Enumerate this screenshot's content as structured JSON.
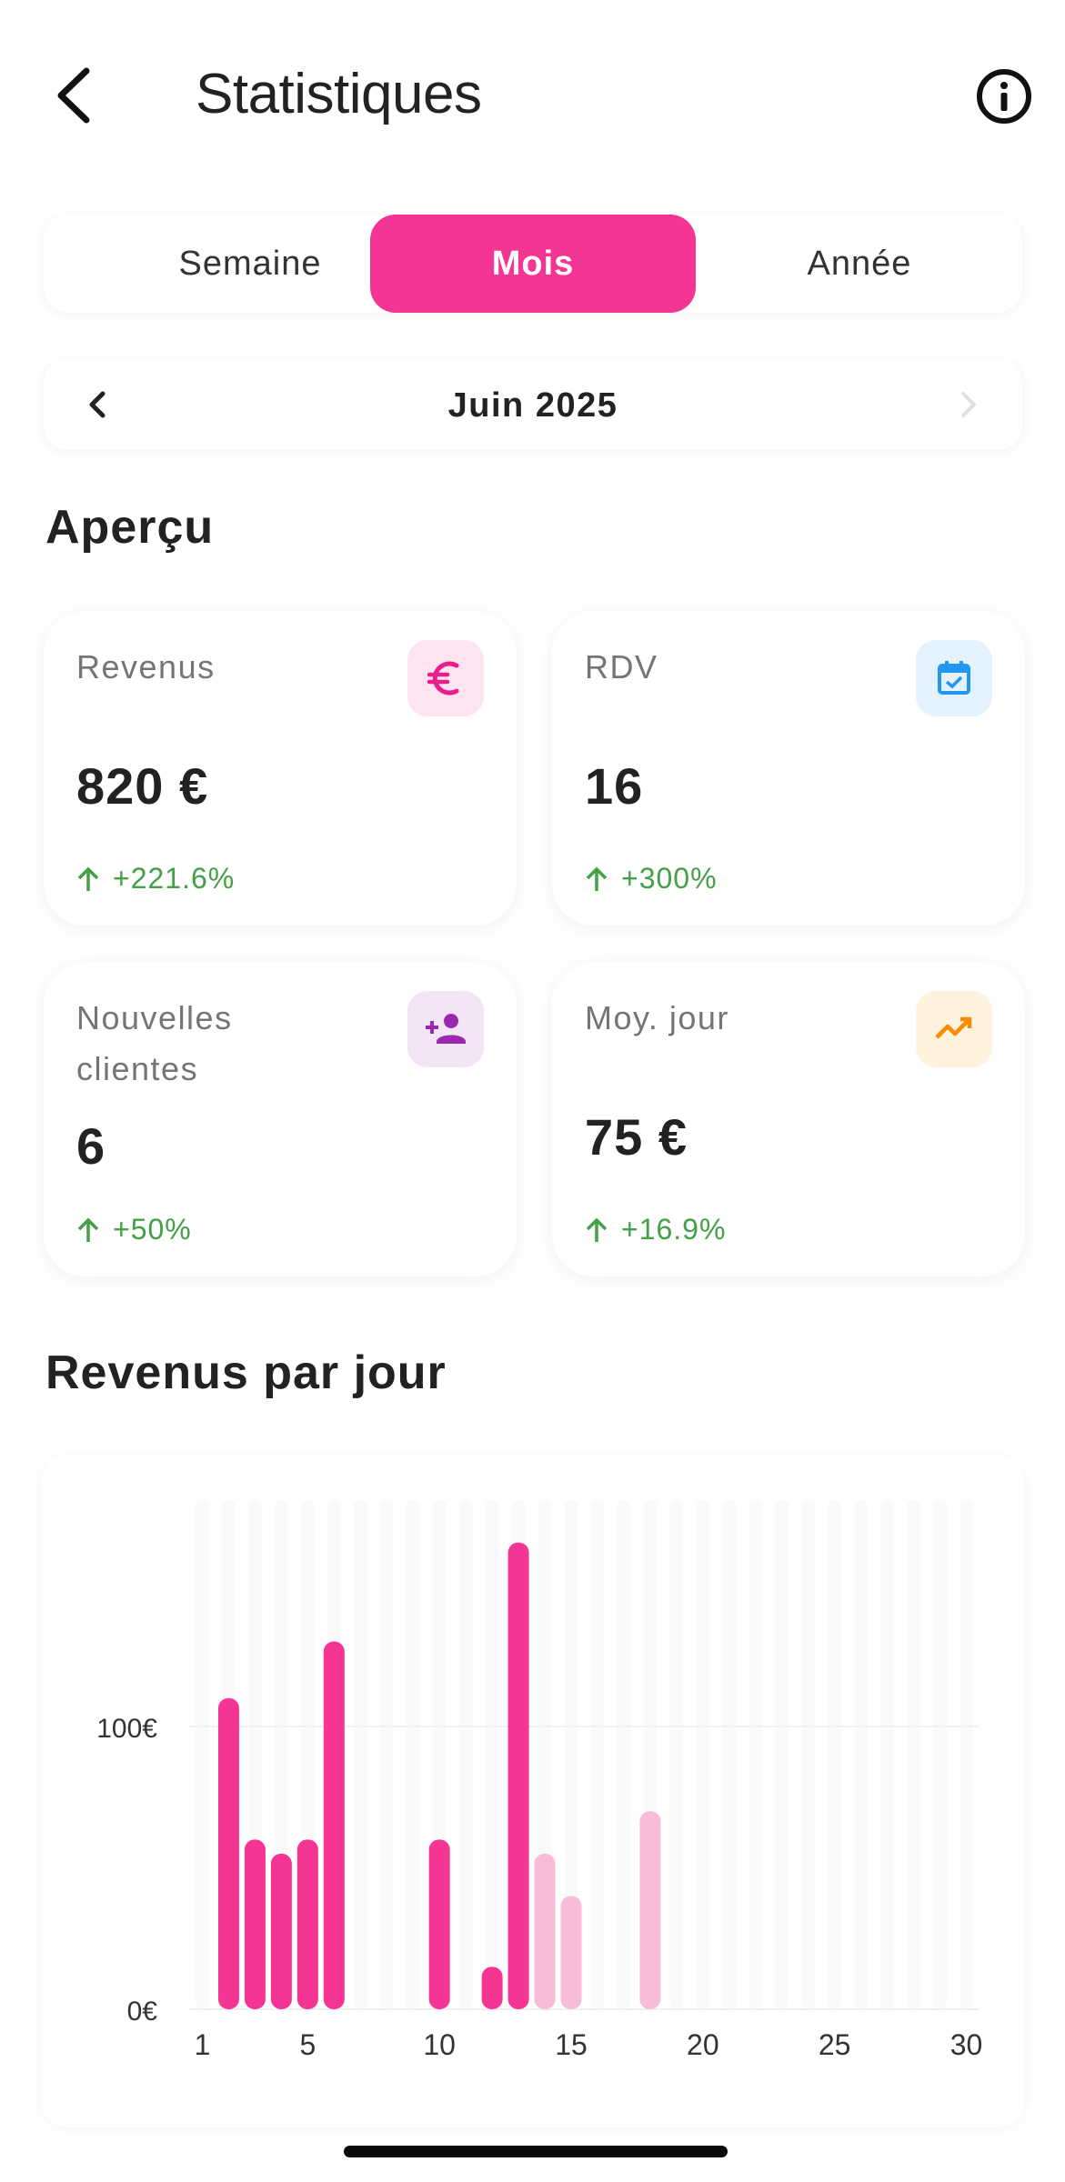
{
  "header": {
    "title": "Statistiques"
  },
  "tabs": [
    {
      "label": "Semaine",
      "active": false
    },
    {
      "label": "Mois",
      "active": true
    },
    {
      "label": "Année",
      "active": false
    }
  ],
  "period": {
    "label": "Juin 2025"
  },
  "overview": {
    "title": "Aperçu",
    "cards": [
      {
        "label": "Revenus",
        "value": "820 €",
        "change": "+221.6%",
        "icon": "euro-icon",
        "icon_color": "#e91e8c",
        "icon_bg": "#fde4f1"
      },
      {
        "label": "RDV",
        "value": "16",
        "change": "+300%",
        "icon": "calendar-check-icon",
        "icon_color": "#2196f3",
        "icon_bg": "#e3f2fd"
      },
      {
        "label": "Nouvelles clientes",
        "value": "6",
        "change": "+50%",
        "icon": "person-add-icon",
        "icon_color": "#9c27b0",
        "icon_bg": "#f3e5f5"
      },
      {
        "label": "Moy. jour",
        "value": "75 €",
        "change": "+16.9%",
        "icon": "trending-up-icon",
        "icon_color": "#fb8c00",
        "icon_bg": "#fff3e0"
      }
    ],
    "change_color": "#43a047"
  },
  "chart_section": {
    "title": "Revenus par jour"
  },
  "chart_data": {
    "type": "bar",
    "title": "Revenus par jour",
    "xlabel": "",
    "ylabel": "",
    "x_ticks": [
      1,
      5,
      10,
      15,
      20,
      25,
      30
    ],
    "y_ticks": [
      "0€",
      "100€"
    ],
    "y_tick_values": [
      0,
      100
    ],
    "ylim": [
      0,
      180
    ],
    "x": [
      1,
      2,
      3,
      4,
      5,
      6,
      7,
      8,
      9,
      10,
      11,
      12,
      13,
      14,
      15,
      16,
      17,
      18,
      19,
      20,
      21,
      22,
      23,
      24,
      25,
      26,
      27,
      28,
      29,
      30
    ],
    "values": [
      0,
      110,
      60,
      55,
      60,
      130,
      0,
      0,
      0,
      60,
      0,
      15,
      165,
      55,
      40,
      0,
      0,
      70,
      0,
      0,
      0,
      0,
      0,
      0,
      0,
      0,
      0,
      0,
      0,
      0
    ],
    "series": [
      {
        "name": "",
        "color": "#f43594",
        "days": [
          2,
          3,
          4,
          5,
          6,
          10,
          12,
          13
        ]
      },
      {
        "name": "",
        "color": "#f8bbd9",
        "days": [
          14,
          15,
          18
        ]
      }
    ],
    "grid": true
  }
}
